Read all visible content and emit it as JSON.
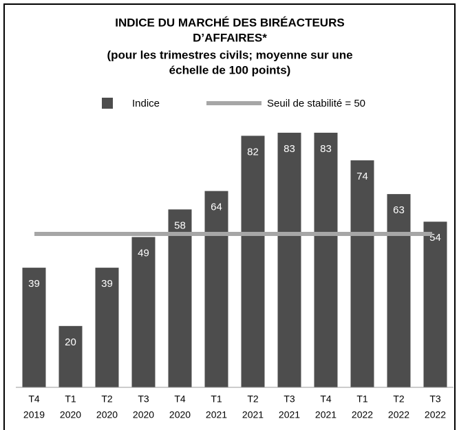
{
  "chart_data": {
    "type": "bar",
    "title": [
      "INDICE DU MARCHÉ DES BIRÉACTEURS",
      "D’AFFAIRES*",
      "(pour les trimestres civils; moyenne sur une",
      "échelle de 100 points)"
    ],
    "categories": [
      [
        "T4",
        "2019"
      ],
      [
        "T1",
        "2020"
      ],
      [
        "T2",
        "2020"
      ],
      [
        "T3",
        "2020"
      ],
      [
        "T4",
        "2020"
      ],
      [
        "T1",
        "2021"
      ],
      [
        "T2",
        "2021"
      ],
      [
        "T3",
        "2021"
      ],
      [
        "T4",
        "2021"
      ],
      [
        "T1",
        "2022"
      ],
      [
        "T2",
        "2022"
      ],
      [
        "T3",
        "2022"
      ]
    ],
    "series": [
      {
        "name": "Indice",
        "color": "#4d4d4d",
        "values": [
          39,
          20,
          39,
          49,
          58,
          64,
          82,
          83,
          83,
          74,
          63,
          54
        ]
      }
    ],
    "reference_line": {
      "label": "Seuil de stabilité = 50",
      "value": 50,
      "color": "#a6a6a6"
    },
    "ylim": [
      0,
      85
    ]
  }
}
